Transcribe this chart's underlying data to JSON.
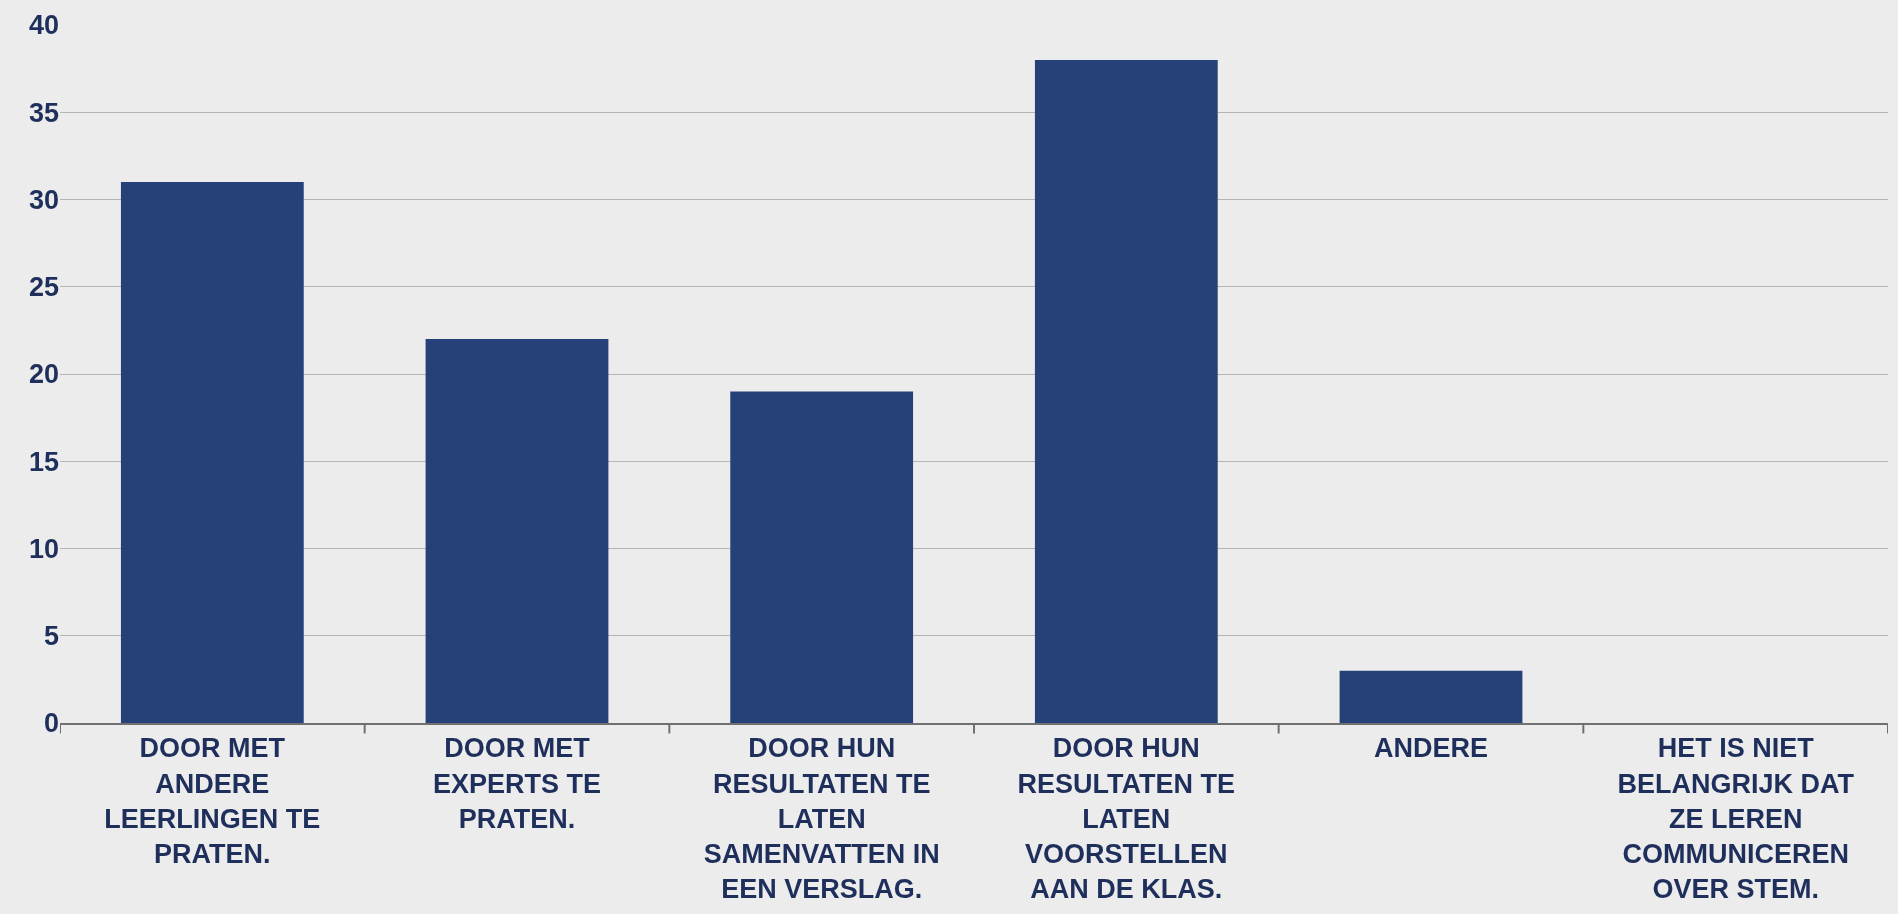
{
  "chart_data": {
    "type": "bar",
    "categories": [
      "DOOR MET ANDERE LEERLINGEN TE PRATEN.",
      "DOOR MET EXPERTS TE PRATEN.",
      "DOOR HUN RESULTATEN TE LATEN SAMENVATTEN IN EEN VERSLAG.",
      "DOOR HUN RESULTATEN TE LATEN VOORSTELLEN AAN DE KLAS.",
      "ANDERE",
      "HET IS NIET BELANGRIJK DAT ZE LEREN COMMUNICEREN OVER STEM."
    ],
    "values": [
      31,
      22,
      19,
      38,
      3,
      0
    ],
    "color": "#264178",
    "ylim": [
      0,
      40
    ],
    "yticks": [
      0,
      5,
      10,
      15,
      20,
      25,
      30,
      35,
      40
    ],
    "grid": "y",
    "legend": false
  }
}
